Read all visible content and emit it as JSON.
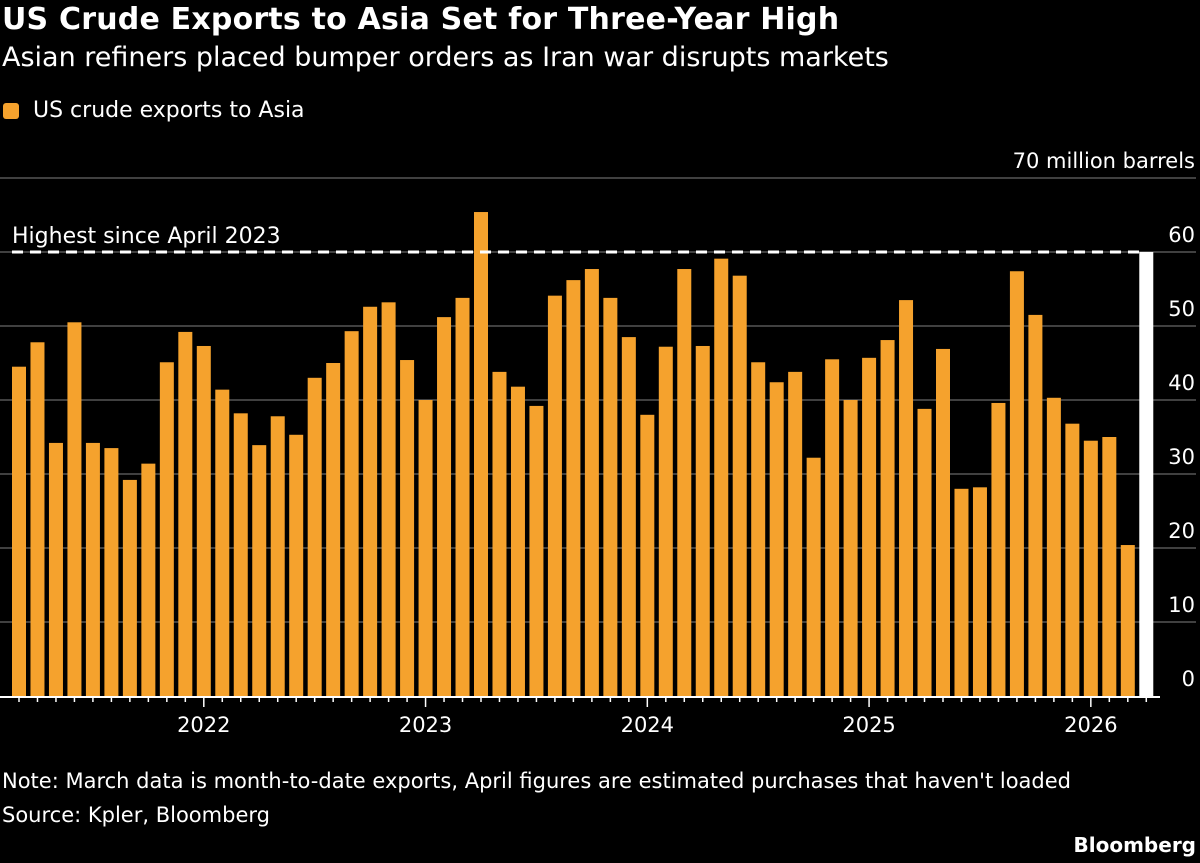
{
  "chart_data": {
    "type": "bar",
    "title": "US Crude Exports to Asia Set for Three-Year High",
    "subtitle": "Asian refiners placed bumper orders as Iran war disrupts markets",
    "legend": {
      "entries": [
        "US crude exports to Asia"
      ],
      "placement": "top-left"
    },
    "ylabel": "70 million barrels",
    "ylim": [
      0,
      70
    ],
    "yticks": [
      0,
      10,
      20,
      30,
      40,
      50,
      60,
      70
    ],
    "ytick_labels": [
      "0",
      "10",
      "20",
      "30",
      "40",
      "50",
      "60",
      "70 million barrels"
    ],
    "xticks": [
      "2022",
      "2023",
      "2024",
      "2025",
      "2026"
    ],
    "grid": true,
    "x": [
      "2021-03",
      "2021-04",
      "2021-05",
      "2021-06",
      "2021-07",
      "2021-08",
      "2021-09",
      "2021-10",
      "2021-11",
      "2021-12",
      "2022-01",
      "2022-02",
      "2022-03",
      "2022-04",
      "2022-05",
      "2022-06",
      "2022-07",
      "2022-08",
      "2022-09",
      "2022-10",
      "2022-11",
      "2022-12",
      "2023-01",
      "2023-02",
      "2023-03",
      "2023-04",
      "2023-05",
      "2023-06",
      "2023-07",
      "2023-08",
      "2023-09",
      "2023-10",
      "2023-11",
      "2023-12",
      "2024-01",
      "2024-02",
      "2024-03",
      "2024-04",
      "2024-05",
      "2024-06",
      "2024-07",
      "2024-08",
      "2024-09",
      "2024-10",
      "2024-11",
      "2024-12",
      "2025-01",
      "2025-02",
      "2025-03",
      "2025-04",
      "2025-05",
      "2025-06",
      "2025-07",
      "2025-08",
      "2025-09",
      "2025-10",
      "2025-11",
      "2025-12",
      "2026-01",
      "2026-02",
      "2026-03"
    ],
    "series": [
      {
        "name": "US crude exports to Asia",
        "color": "#f5a22d",
        "values": [
          44.5,
          47.8,
          34.2,
          50.5,
          34.2,
          33.5,
          29.2,
          31.4,
          45.1,
          49.2,
          47.3,
          41.4,
          38.2,
          33.9,
          37.8,
          35.3,
          43.0,
          45.0,
          49.3,
          52.6,
          53.2,
          45.4,
          40.0,
          51.2,
          53.8,
          65.4,
          43.8,
          41.8,
          39.2,
          54.1,
          56.2,
          57.7,
          53.8,
          48.5,
          38.0,
          47.2,
          57.7,
          47.3,
          59.1,
          56.8,
          45.1,
          42.4,
          43.8,
          32.2,
          45.5,
          40.0,
          45.7,
          48.1,
          53.5,
          38.8,
          46.9,
          28.0,
          28.2,
          39.6,
          57.4,
          51.5,
          40.3,
          36.8,
          34.5,
          35.0,
          20.4
        ]
      },
      {
        "x": "2026-04",
        "value": 60,
        "color": "#ffffff"
      }
    ],
    "annotations": [
      {
        "text": "Highest since April 2023",
        "y": 60,
        "style": "dashed line"
      }
    ],
    "note": "Note: March data is month-to-date exports, April figures are estimated purchases that haven't loaded",
    "source": "Source: Kpler, Bloomberg"
  },
  "brand": "Bloomberg"
}
